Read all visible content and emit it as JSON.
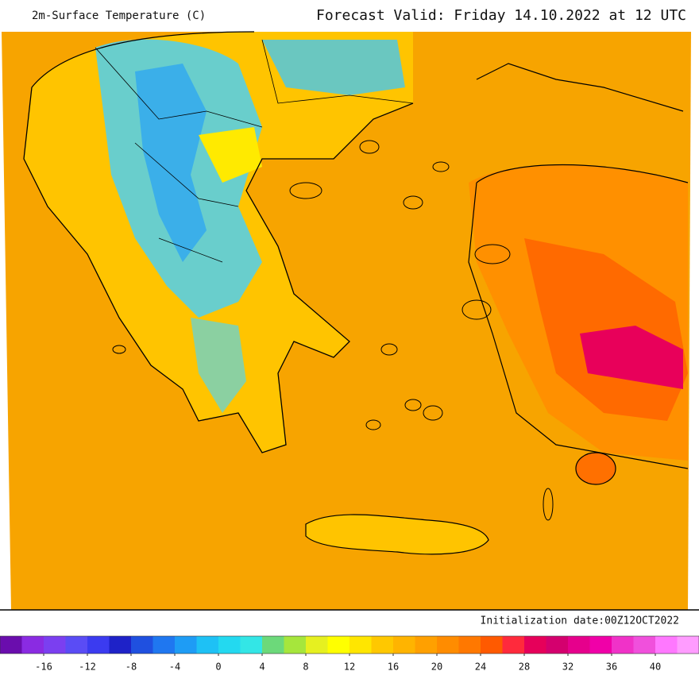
{
  "header": {
    "title": "2m-Surface Temperature (C)",
    "forecast_valid": "Forecast Valid:  Friday 14.10.2022 at 12 UTC"
  },
  "footer": {
    "initialization": "Initialization date:00Z12OCT2022"
  },
  "colorbar": {
    "lim": [
      -20,
      44
    ],
    "ticks": [
      -16,
      -12,
      -8,
      -4,
      0,
      4,
      8,
      12,
      16,
      20,
      24,
      28,
      32,
      36,
      40
    ],
    "colors": [
      "#6a0dad",
      "#8a2be2",
      "#7b3ff0",
      "#5a4cf5",
      "#3b3bf0",
      "#1e22c8",
      "#1f50e0",
      "#1f77f0",
      "#1e9cf5",
      "#1ec1f5",
      "#23d9f0",
      "#33e6e6",
      "#6cd97a",
      "#a6e63c",
      "#e6f020",
      "#ffff00",
      "#ffe600",
      "#ffc800",
      "#ffb400",
      "#ffa000",
      "#ff8c00",
      "#ff7800",
      "#ff5a00",
      "#ff2a3c",
      "#e6005a",
      "#d4006e",
      "#e6008c",
      "#f000a8",
      "#f032c8",
      "#f050dc",
      "#ff78ff",
      "#ff9cff"
    ]
  }
}
